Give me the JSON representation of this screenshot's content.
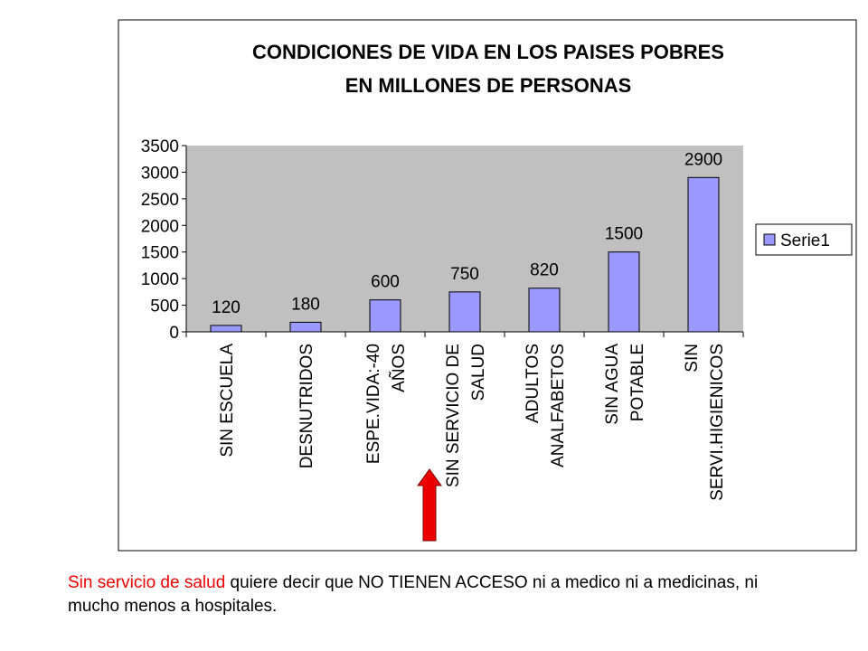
{
  "chart_data": {
    "type": "bar",
    "title": [
      "CONDICIONES DE VIDA EN LOS PAISES POBRES",
      "EN MILLONES DE PERSONAS"
    ],
    "categories": [
      [
        "SIN ESCUELA"
      ],
      [
        "DESNUTRIDOS"
      ],
      [
        "ESPE.VIDA:-40",
        "AÑOS"
      ],
      [
        "SIN SERVICIO DE",
        "SALUD"
      ],
      [
        "ADULTOS",
        "ANALFABETOS"
      ],
      [
        "SIN AGUA",
        "POTABLE"
      ],
      [
        "SIN",
        "SERVI.HIGIENICOS"
      ]
    ],
    "series": [
      {
        "name": "Serie1",
        "values": [
          120,
          180,
          600,
          750,
          820,
          1500,
          2900
        ]
      }
    ],
    "data_labels": [
      "120",
      "180",
      "600",
      "750",
      "820",
      "1500",
      "2900"
    ],
    "ylim": [
      0,
      3500
    ],
    "y_ticks": [
      0,
      500,
      1000,
      1500,
      2000,
      2500,
      3000,
      3500
    ],
    "y_tick_labels": [
      "0",
      "500",
      "1000",
      "1500",
      "2000",
      "2500",
      "3000",
      "3500"
    ],
    "xlabel": "",
    "ylabel": "",
    "grid": false,
    "legend_position": "right",
    "colors": {
      "bar_fill": "#9999ff",
      "bar_stroke": "#000000",
      "plot_background": "#c0c0c0",
      "frame": "#000000"
    },
    "annotation": {
      "icon": "up-arrow-icon",
      "color": "#ee0000",
      "points_to_category_index": 3
    }
  },
  "caption": {
    "highlight": "Sin servicio de salud",
    "highlight_color": "#ee0000",
    "rest": " quiere decir que NO TIENEN ACCESO ni a medico ni a medicinas, ni mucho menos a hospitales."
  }
}
